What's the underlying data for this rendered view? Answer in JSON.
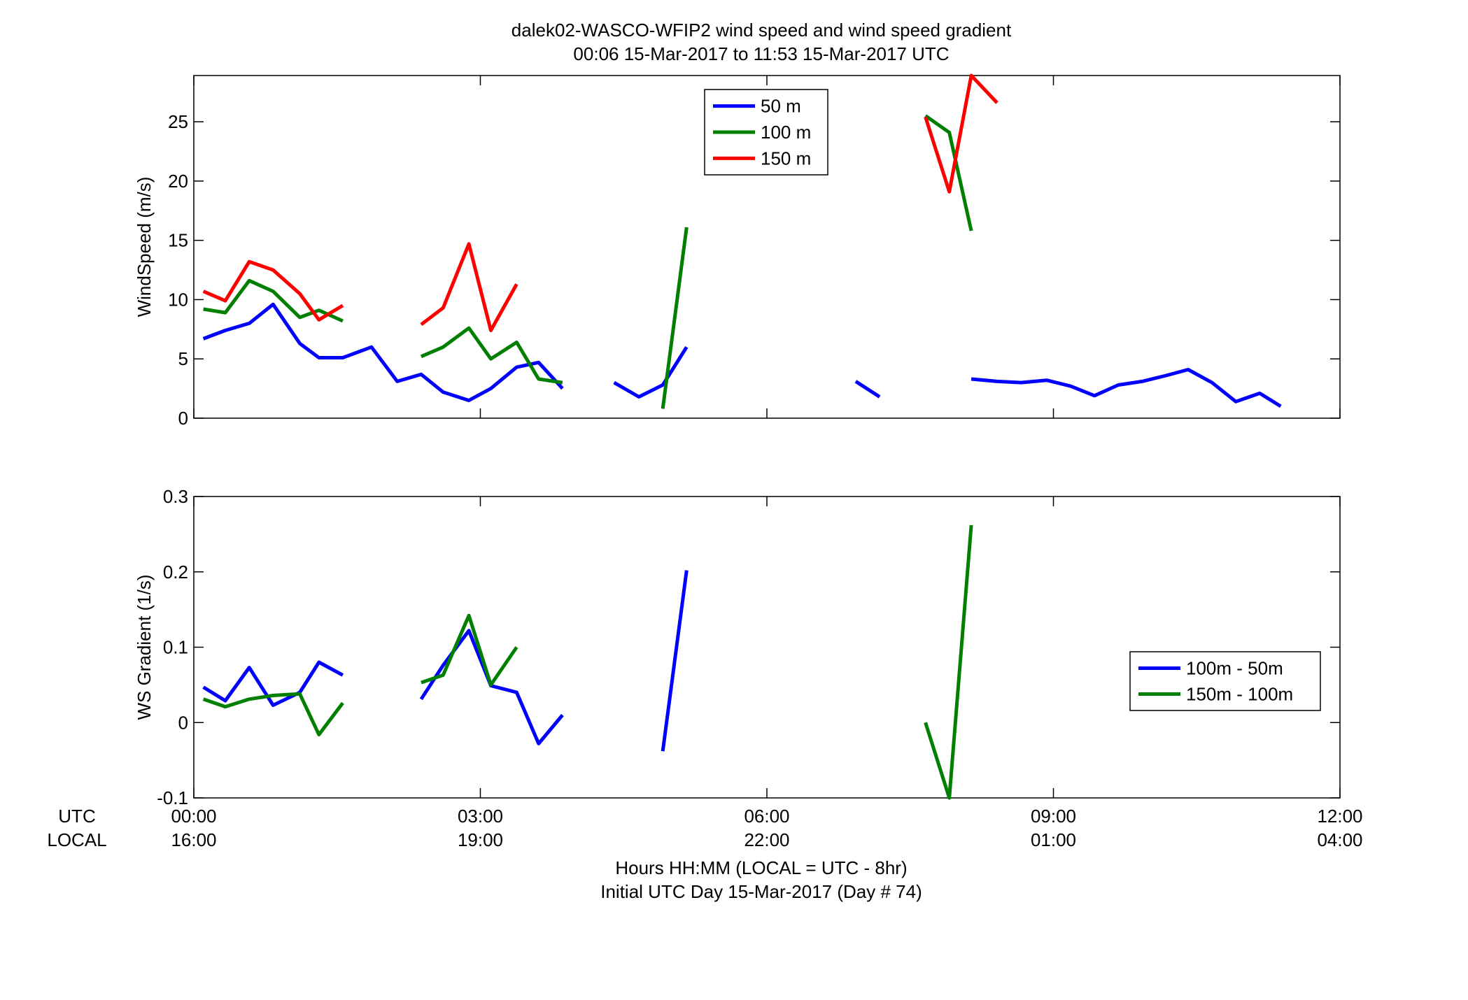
{
  "title_line1": "dalek02-WASCO-WFIP2  wind speed and wind speed gradient",
  "title_line2": "00:06 15-Mar-2017 to 11:53 15-Mar-2017  UTC",
  "xlabel_line1": "Hours HH:MM  (LOCAL = UTC - 8hr)",
  "xlabel_line2": "Initial UTC Day 15-Mar-2017 (Day # 74)",
  "utc_label": "UTC",
  "local_label": "LOCAL",
  "colors": {
    "blue": "#0000ff",
    "green": "#007f00",
    "red": "#ff0000"
  },
  "chart_data": [
    {
      "type": "line",
      "ylabel": "WindSpeed (m/s)",
      "xlim": [
        0,
        12
      ],
      "ylim": [
        0,
        28.9
      ],
      "xticks": [
        0,
        3,
        6,
        9,
        12
      ],
      "xtick_labels_utc": [
        "00:00",
        "03:00",
        "06:00",
        "09:00",
        "12:00"
      ],
      "xtick_labels_local": [
        "16:00",
        "19:00",
        "22:00",
        "01:00",
        "04:00"
      ],
      "yticks": [
        0,
        5,
        10,
        15,
        20,
        25
      ],
      "ytick_labels": [
        "0",
        "5",
        "10",
        "15",
        "20",
        "25"
      ],
      "legend_position": "top-center",
      "series": [
        {
          "name": "50 m",
          "color": "blue",
          "segments": [
            [
              [
                0.1,
                6.7
              ],
              [
                0.33,
                7.4
              ],
              [
                0.58,
                8.0
              ],
              [
                0.83,
                9.6
              ],
              [
                1.11,
                6.3
              ],
              [
                1.31,
                5.1
              ],
              [
                1.56,
                5.1
              ],
              [
                1.86,
                6.0
              ],
              [
                2.13,
                3.1
              ],
              [
                2.38,
                3.7
              ],
              [
                2.61,
                2.2
              ],
              [
                2.88,
                1.5
              ],
              [
                3.11,
                2.5
              ],
              [
                3.38,
                4.3
              ],
              [
                3.61,
                4.7
              ],
              [
                3.86,
                2.5
              ]
            ],
            [
              [
                4.4,
                3.0
              ],
              [
                4.66,
                1.8
              ],
              [
                4.91,
                2.8
              ],
              [
                5.16,
                6.0
              ]
            ],
            [
              [
                6.93,
                3.1
              ],
              [
                7.18,
                1.8
              ]
            ],
            [
              [
                8.14,
                3.3
              ],
              [
                8.41,
                3.1
              ],
              [
                8.66,
                3.0
              ],
              [
                8.93,
                3.2
              ],
              [
                9.18,
                2.7
              ],
              [
                9.43,
                1.9
              ],
              [
                9.68,
                2.8
              ],
              [
                9.93,
                3.1
              ],
              [
                10.18,
                3.6
              ],
              [
                10.41,
                4.1
              ],
              [
                10.66,
                3.0
              ],
              [
                10.91,
                1.4
              ],
              [
                11.16,
                2.1
              ],
              [
                11.38,
                1.0
              ]
            ]
          ]
        },
        {
          "name": "100 m",
          "color": "green",
          "segments": [
            [
              [
                0.1,
                9.2
              ],
              [
                0.33,
                8.9
              ],
              [
                0.58,
                11.6
              ],
              [
                0.83,
                10.7
              ],
              [
                1.11,
                8.5
              ],
              [
                1.31,
                9.1
              ],
              [
                1.56,
                8.2
              ]
            ],
            [
              [
                2.38,
                5.2
              ],
              [
                2.61,
                6.0
              ],
              [
                2.88,
                7.6
              ],
              [
                3.11,
                5.0
              ],
              [
                3.38,
                6.4
              ],
              [
                3.61,
                3.3
              ],
              [
                3.86,
                3.0
              ]
            ],
            [
              [
                4.91,
                0.8
              ],
              [
                5.16,
                16.1
              ]
            ],
            [
              [
                7.66,
                25.5
              ],
              [
                7.91,
                24.1
              ],
              [
                8.14,
                15.8
              ]
            ]
          ]
        },
        {
          "name": "150 m",
          "color": "red",
          "segments": [
            [
              [
                0.1,
                10.7
              ],
              [
                0.33,
                9.9
              ],
              [
                0.58,
                13.2
              ],
              [
                0.83,
                12.5
              ],
              [
                1.11,
                10.5
              ],
              [
                1.31,
                8.3
              ],
              [
                1.56,
                9.5
              ]
            ],
            [
              [
                2.38,
                7.9
              ],
              [
                2.61,
                9.3
              ],
              [
                2.88,
                14.7
              ],
              [
                3.11,
                7.4
              ],
              [
                3.38,
                11.3
              ]
            ],
            [
              [
                7.66,
                25.4
              ],
              [
                7.91,
                19.1
              ],
              [
                8.14,
                28.9
              ],
              [
                8.41,
                26.6
              ]
            ]
          ]
        }
      ]
    },
    {
      "type": "line",
      "ylabel": "WS Gradient (1/s)",
      "xlim": [
        0,
        12
      ],
      "ylim": [
        -0.1,
        0.3
      ],
      "xticks": [
        0,
        3,
        6,
        9,
        12
      ],
      "xtick_labels_utc": [
        "00:00",
        "03:00",
        "06:00",
        "09:00",
        "12:00"
      ],
      "xtick_labels_local": [
        "16:00",
        "19:00",
        "22:00",
        "01:00",
        "04:00"
      ],
      "yticks": [
        -0.1,
        0,
        0.1,
        0.2,
        0.3
      ],
      "ytick_labels": [
        "-0.1",
        "0",
        "0.1",
        "0.2",
        "0.3"
      ],
      "legend_position": "center-right",
      "series": [
        {
          "name": "100m - 50m",
          "color": "blue",
          "segments": [
            [
              [
                0.1,
                0.047
              ],
              [
                0.33,
                0.029
              ],
              [
                0.58,
                0.073
              ],
              [
                0.83,
                0.023
              ],
              [
                1.11,
                0.04
              ],
              [
                1.31,
                0.08
              ],
              [
                1.56,
                0.063
              ]
            ],
            [
              [
                2.38,
                0.031
              ],
              [
                2.61,
                0.076
              ],
              [
                2.88,
                0.122
              ],
              [
                3.11,
                0.049
              ],
              [
                3.38,
                0.04
              ],
              [
                3.61,
                -0.028
              ],
              [
                3.86,
                0.01
              ]
            ],
            [
              [
                4.91,
                -0.038
              ],
              [
                5.16,
                0.202
              ]
            ]
          ]
        },
        {
          "name": "150m - 100m",
          "color": "green",
          "segments": [
            [
              [
                0.1,
                0.031
              ],
              [
                0.33,
                0.021
              ],
              [
                0.58,
                0.031
              ],
              [
                0.83,
                0.036
              ],
              [
                1.11,
                0.038
              ],
              [
                1.31,
                -0.016
              ],
              [
                1.56,
                0.026
              ]
            ],
            [
              [
                2.38,
                0.053
              ],
              [
                2.61,
                0.063
              ],
              [
                2.88,
                0.142
              ],
              [
                3.11,
                0.05
              ],
              [
                3.38,
                0.1
              ]
            ],
            [
              [
                7.66,
                0.0
              ],
              [
                7.91,
                -0.1
              ],
              [
                8.14,
                0.262
              ]
            ]
          ]
        }
      ]
    }
  ]
}
